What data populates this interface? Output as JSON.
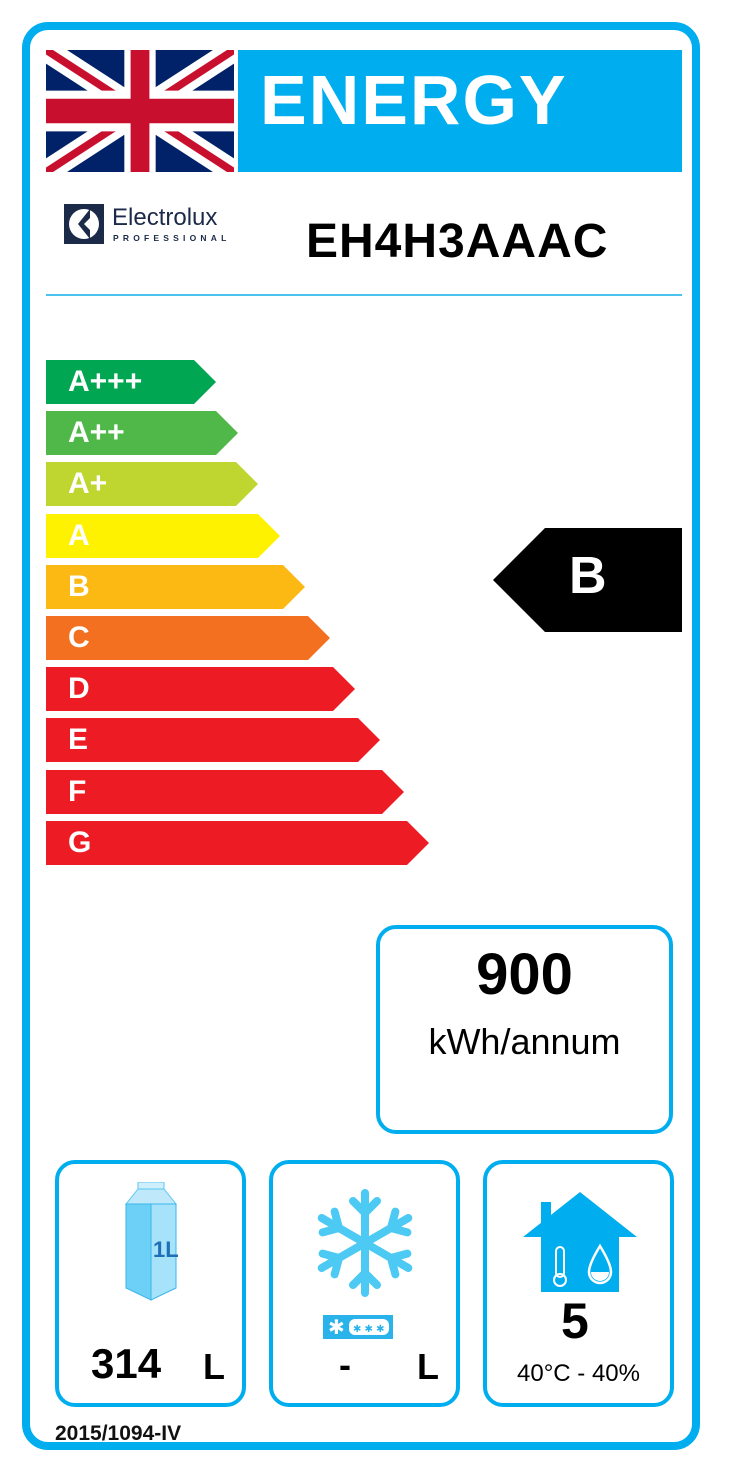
{
  "header": {
    "title": "ENERGY",
    "flag_icon": "union-jack-flag"
  },
  "brand": {
    "name": "Electrolux",
    "subtitle": "PROFESSIONAL"
  },
  "model": "EH4H3AAAC",
  "scale": [
    {
      "label": "A+++",
      "color": "#00A651"
    },
    {
      "label": "A++",
      "color": "#50B848"
    },
    {
      "label": "A+",
      "color": "#BED62F"
    },
    {
      "label": "A",
      "color": "#FFF200"
    },
    {
      "label": "B",
      "color": "#FDB913"
    },
    {
      "label": "C",
      "color": "#F37021"
    },
    {
      "label": "D",
      "color": "#ED1C24"
    },
    {
      "label": "E",
      "color": "#ED1C24"
    },
    {
      "label": "F",
      "color": "#ED1C24"
    },
    {
      "label": "G",
      "color": "#ED1C24"
    }
  ],
  "rating": "B",
  "consumption": {
    "value": "900",
    "unit": "kWh/annum"
  },
  "chilled_volume": {
    "icon": "milk-carton-icon",
    "carton_label": "1L",
    "value": "314",
    "unit": "L"
  },
  "frozen_volume": {
    "icon": "snowflake-icon",
    "value": "-",
    "unit": "L"
  },
  "climate_class": {
    "icon": "house-thermometer-drop-icon",
    "value": "5",
    "conditions": "40°C - 40%"
  },
  "regulation": "2015/1094-IV",
  "accent_color": "#00AEEF"
}
